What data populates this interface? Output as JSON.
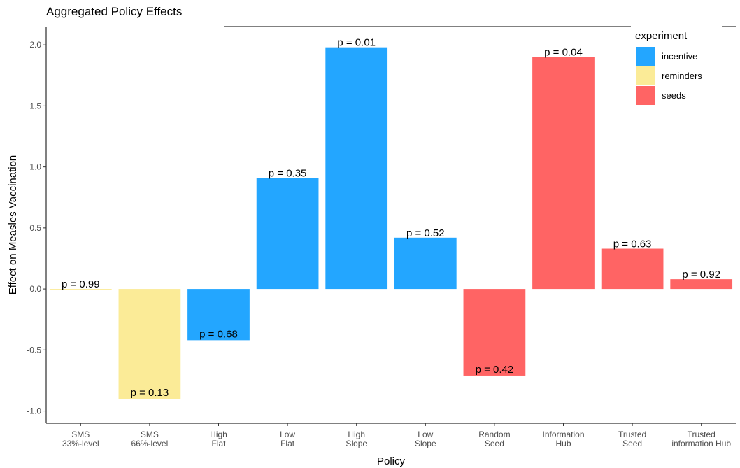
{
  "chart_data": {
    "type": "bar",
    "title": "Aggregated Policy Effects",
    "xlabel": "Policy",
    "ylabel": "Effect on Measles Vaccination",
    "ylim": [
      -1.1,
      2.15
    ],
    "yticks": [
      "-1.0",
      "-0.5",
      "0.0",
      "0.5",
      "1.0",
      "1.5",
      "2.0"
    ],
    "ytick_values": [
      -1.0,
      -0.5,
      0.0,
      0.5,
      1.0,
      1.5,
      2.0
    ],
    "grid": false,
    "legend_title": "experiment",
    "legend_position": "top-right",
    "legend": [
      {
        "name": "incentive",
        "color": "#23A6FF"
      },
      {
        "name": "reminders",
        "color": "#FBEB97"
      },
      {
        "name": "seeds",
        "color": "#FF6464"
      }
    ],
    "categories": [
      [
        "SMS",
        "33%-level"
      ],
      [
        "SMS",
        "66%-level"
      ],
      [
        "High",
        "Flat"
      ],
      [
        "Low",
        "Flat"
      ],
      [
        "High",
        "Slope"
      ],
      [
        "Low",
        "Slope"
      ],
      [
        "Random",
        "Seed"
      ],
      [
        "Information",
        "Hub"
      ],
      [
        "Trusted",
        "Seed"
      ],
      [
        "Trusted",
        "information Hub"
      ]
    ],
    "values": [
      0.0,
      -0.9,
      -0.42,
      0.91,
      1.98,
      0.42,
      -0.71,
      1.9,
      0.33,
      0.08
    ],
    "groups": [
      "reminders",
      "reminders",
      "incentive",
      "incentive",
      "incentive",
      "incentive",
      "seeds",
      "seeds",
      "seeds",
      "seeds"
    ],
    "annotations": [
      "p = 0.99",
      "p = 0.13",
      "p = 0.68",
      "p = 0.35",
      "p = 0.01",
      "p = 0.52",
      "p = 0.42",
      "p = 0.04",
      "p = 0.63",
      "p = 0.92"
    ]
  }
}
